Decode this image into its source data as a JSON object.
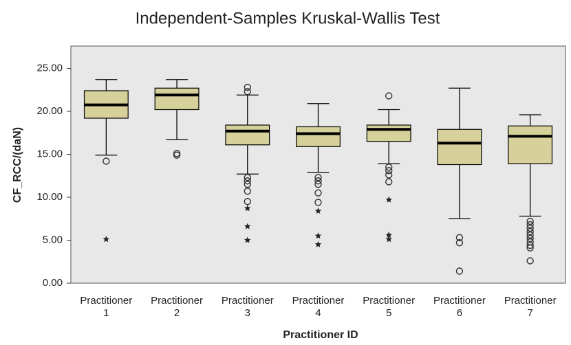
{
  "chart_data": {
    "type": "box",
    "title": "Independent-Samples Kruskal-Wallis Test",
    "y_label": "CF_RCC/(daN)",
    "x_label": "Practitioner ID",
    "categories": [
      [
        "Practitioner",
        "1"
      ],
      [
        "Practitioner",
        "2"
      ],
      [
        "Practitioner",
        "3"
      ],
      [
        "Practitioner",
        "4"
      ],
      [
        "Practitioner",
        "5"
      ],
      [
        "Practitioner",
        "6"
      ],
      [
        "Practitioner",
        "7"
      ]
    ],
    "color": "#d6d09a",
    "background": "#e8e8e8",
    "ylim": [
      0,
      27.6
    ],
    "yticks": [
      {
        "value": 0,
        "label": "0.00"
      },
      {
        "value": 5,
        "label": "5.00"
      },
      {
        "value": 10,
        "label": "10.00"
      },
      {
        "value": 15,
        "label": "15.00"
      },
      {
        "value": 20,
        "label": "20.00"
      },
      {
        "value": 25,
        "label": "25.00"
      }
    ],
    "boxes": [
      {
        "low": 14.9,
        "q1": 19.2,
        "median": 20.75,
        "q3": 22.4,
        "high": 23.7,
        "outliers": [
          14.2
        ],
        "extremes": [
          5.1
        ]
      },
      {
        "low": 16.7,
        "q1": 20.2,
        "median": 21.9,
        "q3": 22.7,
        "high": 23.7,
        "outliers": [
          15.1,
          14.9
        ],
        "extremes": []
      },
      {
        "low": 12.7,
        "q1": 16.1,
        "median": 17.7,
        "q3": 18.4,
        "high": 21.9,
        "outliers": [
          22.8,
          22.3,
          12.3,
          11.9,
          11.5,
          10.7,
          9.5
        ],
        "extremes": [
          8.7,
          6.6,
          5.0
        ]
      },
      {
        "low": 12.9,
        "q1": 15.9,
        "median": 17.4,
        "q3": 18.2,
        "high": 20.9,
        "outliers": [
          12.3,
          11.9,
          11.5,
          10.5,
          9.4
        ],
        "extremes": [
          8.4,
          5.5,
          4.5
        ]
      },
      {
        "low": 13.9,
        "q1": 16.5,
        "median": 17.9,
        "q3": 18.4,
        "high": 20.2,
        "outliers": [
          21.8,
          13.5,
          13.1,
          12.6,
          11.8
        ],
        "extremes": [
          9.7,
          5.6,
          5.1
        ]
      },
      {
        "low": 7.5,
        "q1": 13.8,
        "median": 16.3,
        "q3": 17.9,
        "high": 22.7,
        "outliers": [
          5.3,
          4.7,
          1.4
        ],
        "extremes": []
      },
      {
        "low": 7.8,
        "q1": 13.9,
        "median": 17.1,
        "q3": 18.3,
        "high": 19.6,
        "outliers": [
          7.2,
          6.8,
          6.4,
          6.0,
          5.6,
          5.2,
          4.8,
          4.4,
          4.1,
          2.6
        ],
        "extremes": []
      }
    ]
  }
}
